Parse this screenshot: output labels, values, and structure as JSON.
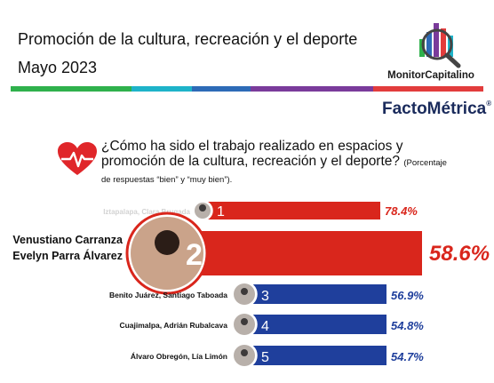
{
  "header": {
    "title": "Promoción de la cultura, recreación y el deporte",
    "period": "Mayo 2023"
  },
  "colors": {
    "stripe": [
      "#2fb14c",
      "#1eb3c9",
      "#2d6bb7",
      "#7a3b9b",
      "#e23c3c"
    ],
    "red": "#d9261c",
    "blue": "#1f3f9c",
    "navy": "#1a2b5c"
  },
  "brand": {
    "monitor": "MonitorCapitalino",
    "factometrica": "FactoMétrica",
    "registered": "®"
  },
  "icons": {
    "question": "heart-pulse-icon"
  },
  "question": {
    "text": "¿Cómo ha sido el trabajo realizado en espacios y promoción de la cultura, recreación y el deporte?",
    "note": "(Porcentaje de respuestas “bien” y “muy bien”)."
  },
  "chart_data": {
    "type": "bar",
    "categories": [
      "Iztapalapa, Clara Brugada",
      "Venustiano Carranza, Evelyn Parra Álvarez",
      "Benito Juárez, Santiago Taboada",
      "Cuajimalpa, Adrián Rubalcava",
      "Álvaro Obregón, Lía Limón"
    ],
    "ranks": [
      "1",
      "2",
      "3",
      "4",
      "5"
    ],
    "values": [
      78.4,
      58.6,
      56.9,
      54.8,
      54.7
    ],
    "value_labels": [
      "78.4%",
      "58.6%",
      "56.9%",
      "54.8%",
      "54.7%"
    ],
    "label_lines": [
      [
        "Iztapalapa, Clara Brugada"
      ],
      [
        "Venustiano Carranza",
        "Evelyn Parra Álvarez"
      ],
      [
        "Benito Juárez, Santiago Taboada"
      ],
      [
        "Cuajimalpa, Adrián Rubalcava"
      ],
      [
        "Álvaro Obregón, Lía Limón"
      ]
    ],
    "bar_colors": [
      "#d9261c",
      "#d9261c",
      "#1f3f9c",
      "#1f3f9c",
      "#1f3f9c"
    ],
    "highlight_index": 1,
    "faded_index": 0,
    "title": "",
    "xlabel": "",
    "ylabel": "",
    "grid": false,
    "legend": "none"
  }
}
